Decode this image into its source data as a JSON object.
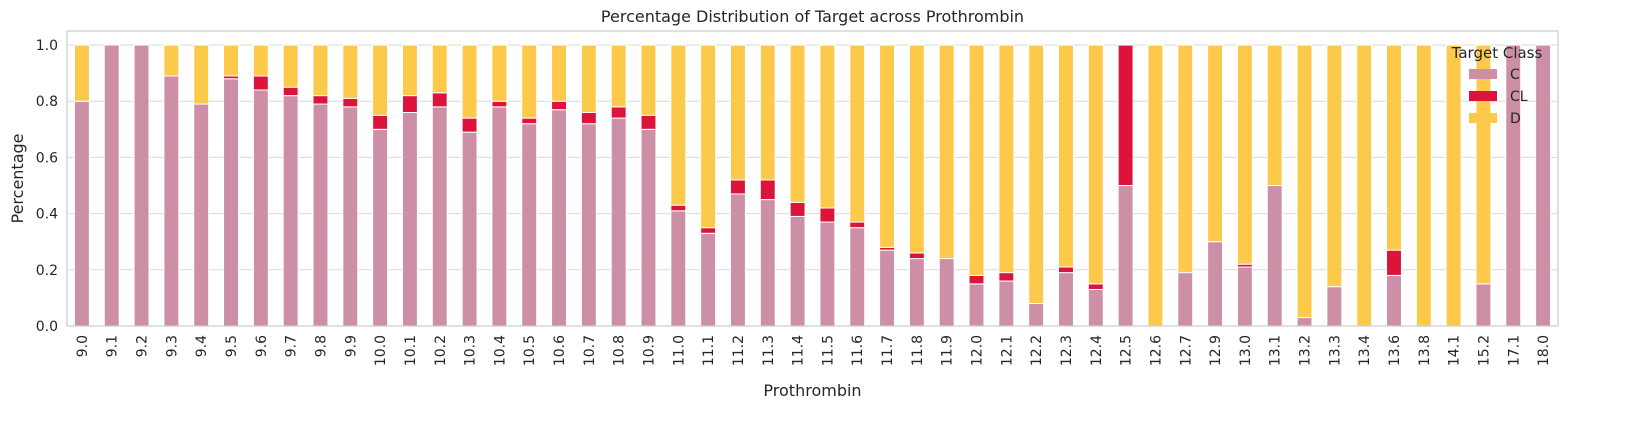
{
  "chart_data": {
    "type": "bar",
    "stacked": true,
    "title": "Percentage Distribution of Target across Prothrombin",
    "xlabel": "Prothrombin",
    "ylabel": "Percentage",
    "ylim": [
      0,
      1.05
    ],
    "yticks": [
      "0.0",
      "0.2",
      "0.4",
      "0.6",
      "0.8",
      "1.0"
    ],
    "grid": true,
    "legend": {
      "title": "Target Class",
      "placement": "top-right"
    },
    "categories": [
      "9.0",
      "9.1",
      "9.2",
      "9.3",
      "9.4",
      "9.5",
      "9.6",
      "9.7",
      "9.8",
      "9.9",
      "10.0",
      "10.1",
      "10.2",
      "10.3",
      "10.4",
      "10.5",
      "10.6",
      "10.7",
      "10.8",
      "10.9",
      "11.0",
      "11.1",
      "11.2",
      "11.3",
      "11.4",
      "11.5",
      "11.6",
      "11.7",
      "11.8",
      "11.9",
      "12.0",
      "12.1",
      "12.2",
      "12.3",
      "12.4",
      "12.5",
      "12.6",
      "12.7",
      "12.9",
      "13.0",
      "13.1",
      "13.2",
      "13.3",
      "13.4",
      "13.6",
      "13.8",
      "14.1",
      "15.2",
      "17.1",
      "18.0"
    ],
    "series": [
      {
        "name": "C",
        "color": "#cc8fa6",
        "values": [
          0.8,
          1.0,
          1.0,
          0.89,
          0.79,
          0.88,
          0.84,
          0.82,
          0.79,
          0.78,
          0.7,
          0.76,
          0.78,
          0.69,
          0.78,
          0.72,
          0.77,
          0.72,
          0.74,
          0.7,
          0.41,
          0.33,
          0.47,
          0.45,
          0.39,
          0.37,
          0.35,
          0.27,
          0.24,
          0.24,
          0.15,
          0.16,
          0.08,
          0.19,
          0.13,
          0.5,
          0.0,
          0.19,
          0.3,
          0.21,
          0.5,
          0.03,
          0.14,
          0.0,
          0.18,
          0.0,
          0.0,
          0.15,
          1.0,
          1.0
        ]
      },
      {
        "name": "CL",
        "color": "#dc143c",
        "values": [
          0.0,
          0.0,
          0.0,
          0.0,
          0.0,
          0.01,
          0.05,
          0.03,
          0.03,
          0.03,
          0.05,
          0.06,
          0.05,
          0.05,
          0.02,
          0.02,
          0.03,
          0.04,
          0.04,
          0.05,
          0.02,
          0.02,
          0.05,
          0.07,
          0.05,
          0.05,
          0.02,
          0.01,
          0.02,
          0.0,
          0.03,
          0.03,
          0.0,
          0.02,
          0.02,
          0.5,
          0.0,
          0.0,
          0.0,
          0.01,
          0.0,
          0.0,
          0.0,
          0.0,
          0.09,
          0.0,
          0.0,
          0.0,
          0.0,
          0.0
        ]
      },
      {
        "name": "D",
        "color": "#fcc94b",
        "values": [
          0.2,
          0.0,
          0.0,
          0.11,
          0.21,
          0.11,
          0.11,
          0.15,
          0.18,
          0.19,
          0.25,
          0.18,
          0.17,
          0.26,
          0.2,
          0.26,
          0.2,
          0.24,
          0.22,
          0.25,
          0.57,
          0.65,
          0.48,
          0.48,
          0.56,
          0.58,
          0.63,
          0.72,
          0.74,
          0.76,
          0.82,
          0.81,
          0.92,
          0.79,
          0.85,
          0.0,
          1.0,
          0.81,
          0.7,
          0.78,
          0.5,
          0.97,
          0.86,
          1.0,
          0.73,
          1.0,
          1.0,
          0.85,
          0.0,
          0.0
        ]
      }
    ]
  }
}
